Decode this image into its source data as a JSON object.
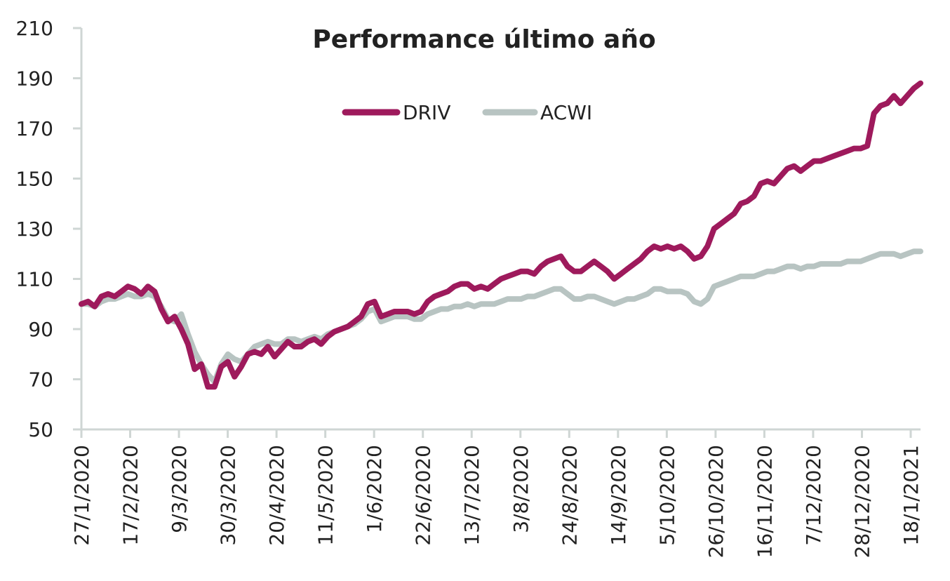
{
  "chart_data": {
    "type": "line",
    "title": "Performance último año",
    "xlabel": "",
    "ylabel": "",
    "ylim": [
      50,
      210
    ],
    "yticks": [
      50,
      70,
      90,
      110,
      130,
      150,
      170,
      190,
      210
    ],
    "grid": false,
    "legend_position": "top-center",
    "x_tick_labels": [
      "27/1/2020",
      "17/2/2020",
      "9/3/2020",
      "30/3/2020",
      "20/4/2020",
      "11/5/2020",
      "1/6/2020",
      "22/6/2020",
      "13/7/2020",
      "3/8/2020",
      "24/8/2020",
      "14/9/2020",
      "5/10/2020",
      "26/10/2020",
      "16/11/2020",
      "7/12/2020",
      "28/12/2020",
      "18/1/2021"
    ],
    "series": [
      {
        "name": "DRIV",
        "color": "#9e1a5c",
        "values": [
          {
            "x": 0,
            "y": 100
          },
          {
            "x": 1,
            "y": 101
          },
          {
            "x": 2,
            "y": 99
          },
          {
            "x": 3,
            "y": 103
          },
          {
            "x": 4,
            "y": 104
          },
          {
            "x": 5,
            "y": 103
          },
          {
            "x": 6,
            "y": 105
          },
          {
            "x": 7,
            "y": 107
          },
          {
            "x": 8,
            "y": 106
          },
          {
            "x": 9,
            "y": 104
          },
          {
            "x": 10,
            "y": 107
          },
          {
            "x": 11,
            "y": 105
          },
          {
            "x": 12,
            "y": 98
          },
          {
            "x": 13,
            "y": 93
          },
          {
            "x": 14,
            "y": 95
          },
          {
            "x": 15,
            "y": 90
          },
          {
            "x": 16,
            "y": 84
          },
          {
            "x": 17,
            "y": 74
          },
          {
            "x": 18,
            "y": 76
          },
          {
            "x": 19,
            "y": 67
          },
          {
            "x": 20,
            "y": 67
          },
          {
            "x": 21,
            "y": 75
          },
          {
            "x": 22,
            "y": 77
          },
          {
            "x": 23,
            "y": 71
          },
          {
            "x": 24,
            "y": 75
          },
          {
            "x": 25,
            "y": 80
          },
          {
            "x": 26,
            "y": 81
          },
          {
            "x": 27,
            "y": 80
          },
          {
            "x": 28,
            "y": 83
          },
          {
            "x": 29,
            "y": 79
          },
          {
            "x": 30,
            "y": 82
          },
          {
            "x": 31,
            "y": 85
          },
          {
            "x": 32,
            "y": 83
          },
          {
            "x": 33,
            "y": 83
          },
          {
            "x": 34,
            "y": 85
          },
          {
            "x": 35,
            "y": 86
          },
          {
            "x": 36,
            "y": 84
          },
          {
            "x": 37,
            "y": 87
          },
          {
            "x": 38,
            "y": 89
          },
          {
            "x": 39,
            "y": 90
          },
          {
            "x": 40,
            "y": 91
          },
          {
            "x": 41,
            "y": 93
          },
          {
            "x": 42,
            "y": 95
          },
          {
            "x": 43,
            "y": 100
          },
          {
            "x": 44,
            "y": 101
          },
          {
            "x": 45,
            "y": 95
          },
          {
            "x": 46,
            "y": 96
          },
          {
            "x": 47,
            "y": 97
          },
          {
            "x": 48,
            "y": 97
          },
          {
            "x": 49,
            "y": 97
          },
          {
            "x": 50,
            "y": 96
          },
          {
            "x": 51,
            "y": 97
          },
          {
            "x": 52,
            "y": 101
          },
          {
            "x": 53,
            "y": 103
          },
          {
            "x": 54,
            "y": 104
          },
          {
            "x": 55,
            "y": 105
          },
          {
            "x": 56,
            "y": 107
          },
          {
            "x": 57,
            "y": 108
          },
          {
            "x": 58,
            "y": 108
          },
          {
            "x": 59,
            "y": 106
          },
          {
            "x": 60,
            "y": 107
          },
          {
            "x": 61,
            "y": 106
          },
          {
            "x": 62,
            "y": 108
          },
          {
            "x": 63,
            "y": 110
          },
          {
            "x": 64,
            "y": 111
          },
          {
            "x": 65,
            "y": 112
          },
          {
            "x": 66,
            "y": 113
          },
          {
            "x": 67,
            "y": 113
          },
          {
            "x": 68,
            "y": 112
          },
          {
            "x": 69,
            "y": 115
          },
          {
            "x": 70,
            "y": 117
          },
          {
            "x": 71,
            "y": 118
          },
          {
            "x": 72,
            "y": 119
          },
          {
            "x": 73,
            "y": 115
          },
          {
            "x": 74,
            "y": 113
          },
          {
            "x": 75,
            "y": 113
          },
          {
            "x": 76,
            "y": 115
          },
          {
            "x": 77,
            "y": 117
          },
          {
            "x": 78,
            "y": 115
          },
          {
            "x": 79,
            "y": 113
          },
          {
            "x": 80,
            "y": 110
          },
          {
            "x": 81,
            "y": 112
          },
          {
            "x": 82,
            "y": 114
          },
          {
            "x": 83,
            "y": 116
          },
          {
            "x": 84,
            "y": 118
          },
          {
            "x": 85,
            "y": 121
          },
          {
            "x": 86,
            "y": 123
          },
          {
            "x": 87,
            "y": 122
          },
          {
            "x": 88,
            "y": 123
          },
          {
            "x": 89,
            "y": 122
          },
          {
            "x": 90,
            "y": 123
          },
          {
            "x": 91,
            "y": 121
          },
          {
            "x": 92,
            "y": 118
          },
          {
            "x": 93,
            "y": 119
          },
          {
            "x": 94,
            "y": 123
          },
          {
            "x": 95,
            "y": 130
          },
          {
            "x": 96,
            "y": 132
          },
          {
            "x": 97,
            "y": 134
          },
          {
            "x": 98,
            "y": 136
          },
          {
            "x": 99,
            "y": 140
          },
          {
            "x": 100,
            "y": 141
          },
          {
            "x": 101,
            "y": 143
          },
          {
            "x": 102,
            "y": 148
          },
          {
            "x": 103,
            "y": 149
          },
          {
            "x": 104,
            "y": 148
          },
          {
            "x": 105,
            "y": 151
          },
          {
            "x": 106,
            "y": 154
          },
          {
            "x": 107,
            "y": 155
          },
          {
            "x": 108,
            "y": 153
          },
          {
            "x": 109,
            "y": 155
          },
          {
            "x": 110,
            "y": 157
          },
          {
            "x": 111,
            "y": 157
          },
          {
            "x": 112,
            "y": 158
          },
          {
            "x": 113,
            "y": 159
          },
          {
            "x": 114,
            "y": 160
          },
          {
            "x": 115,
            "y": 161
          },
          {
            "x": 116,
            "y": 162
          },
          {
            "x": 117,
            "y": 162
          },
          {
            "x": 118,
            "y": 163
          },
          {
            "x": 119,
            "y": 176
          },
          {
            "x": 120,
            "y": 179
          },
          {
            "x": 121,
            "y": 180
          },
          {
            "x": 122,
            "y": 183
          },
          {
            "x": 123,
            "y": 180
          },
          {
            "x": 124,
            "y": 183
          },
          {
            "x": 125,
            "y": 186
          },
          {
            "x": 126,
            "y": 188
          }
        ]
      },
      {
        "name": "ACWI",
        "color": "#b8c4c2",
        "values": [
          {
            "x": 0,
            "y": 100
          },
          {
            "x": 1,
            "y": 100
          },
          {
            "x": 2,
            "y": 99
          },
          {
            "x": 3,
            "y": 101
          },
          {
            "x": 4,
            "y": 102
          },
          {
            "x": 5,
            "y": 102
          },
          {
            "x": 6,
            "y": 103
          },
          {
            "x": 7,
            "y": 104
          },
          {
            "x": 8,
            "y": 103
          },
          {
            "x": 9,
            "y": 103
          },
          {
            "x": 10,
            "y": 104
          },
          {
            "x": 11,
            "y": 103
          },
          {
            "x": 12,
            "y": 99
          },
          {
            "x": 13,
            "y": 94
          },
          {
            "x": 14,
            "y": 93
          },
          {
            "x": 15,
            "y": 96
          },
          {
            "x": 16,
            "y": 88
          },
          {
            "x": 17,
            "y": 81
          },
          {
            "x": 18,
            "y": 76
          },
          {
            "x": 19,
            "y": 72
          },
          {
            "x": 20,
            "y": 69
          },
          {
            "x": 21,
            "y": 76
          },
          {
            "x": 22,
            "y": 80
          },
          {
            "x": 23,
            "y": 78
          },
          {
            "x": 24,
            "y": 77
          },
          {
            "x": 25,
            "y": 80
          },
          {
            "x": 26,
            "y": 83
          },
          {
            "x": 27,
            "y": 84
          },
          {
            "x": 28,
            "y": 85
          },
          {
            "x": 29,
            "y": 84
          },
          {
            "x": 30,
            "y": 84
          },
          {
            "x": 31,
            "y": 86
          },
          {
            "x": 32,
            "y": 86
          },
          {
            "x": 33,
            "y": 85
          },
          {
            "x": 34,
            "y": 86
          },
          {
            "x": 35,
            "y": 87
          },
          {
            "x": 36,
            "y": 86
          },
          {
            "x": 37,
            "y": 88
          },
          {
            "x": 38,
            "y": 89
          },
          {
            "x": 39,
            "y": 90
          },
          {
            "x": 40,
            "y": 91
          },
          {
            "x": 41,
            "y": 92
          },
          {
            "x": 42,
            "y": 94
          },
          {
            "x": 43,
            "y": 97
          },
          {
            "x": 44,
            "y": 98
          },
          {
            "x": 45,
            "y": 93
          },
          {
            "x": 46,
            "y": 94
          },
          {
            "x": 47,
            "y": 95
          },
          {
            "x": 48,
            "y": 95
          },
          {
            "x": 49,
            "y": 95
          },
          {
            "x": 50,
            "y": 94
          },
          {
            "x": 51,
            "y": 94
          },
          {
            "x": 52,
            "y": 96
          },
          {
            "x": 53,
            "y": 97
          },
          {
            "x": 54,
            "y": 98
          },
          {
            "x": 55,
            "y": 98
          },
          {
            "x": 56,
            "y": 99
          },
          {
            "x": 57,
            "y": 99
          },
          {
            "x": 58,
            "y": 100
          },
          {
            "x": 59,
            "y": 99
          },
          {
            "x": 60,
            "y": 100
          },
          {
            "x": 61,
            "y": 100
          },
          {
            "x": 62,
            "y": 100
          },
          {
            "x": 63,
            "y": 101
          },
          {
            "x": 64,
            "y": 102
          },
          {
            "x": 65,
            "y": 102
          },
          {
            "x": 66,
            "y": 102
          },
          {
            "x": 67,
            "y": 103
          },
          {
            "x": 68,
            "y": 103
          },
          {
            "x": 69,
            "y": 104
          },
          {
            "x": 70,
            "y": 105
          },
          {
            "x": 71,
            "y": 106
          },
          {
            "x": 72,
            "y": 106
          },
          {
            "x": 73,
            "y": 104
          },
          {
            "x": 74,
            "y": 102
          },
          {
            "x": 75,
            "y": 102
          },
          {
            "x": 76,
            "y": 103
          },
          {
            "x": 77,
            "y": 103
          },
          {
            "x": 78,
            "y": 102
          },
          {
            "x": 79,
            "y": 101
          },
          {
            "x": 80,
            "y": 100
          },
          {
            "x": 81,
            "y": 101
          },
          {
            "x": 82,
            "y": 102
          },
          {
            "x": 83,
            "y": 102
          },
          {
            "x": 84,
            "y": 103
          },
          {
            "x": 85,
            "y": 104
          },
          {
            "x": 86,
            "y": 106
          },
          {
            "x": 87,
            "y": 106
          },
          {
            "x": 88,
            "y": 105
          },
          {
            "x": 89,
            "y": 105
          },
          {
            "x": 90,
            "y": 105
          },
          {
            "x": 91,
            "y": 104
          },
          {
            "x": 92,
            "y": 101
          },
          {
            "x": 93,
            "y": 100
          },
          {
            "x": 94,
            "y": 102
          },
          {
            "x": 95,
            "y": 107
          },
          {
            "x": 96,
            "y": 108
          },
          {
            "x": 97,
            "y": 109
          },
          {
            "x": 98,
            "y": 110
          },
          {
            "x": 99,
            "y": 111
          },
          {
            "x": 100,
            "y": 111
          },
          {
            "x": 101,
            "y": 111
          },
          {
            "x": 102,
            "y": 112
          },
          {
            "x": 103,
            "y": 113
          },
          {
            "x": 104,
            "y": 113
          },
          {
            "x": 105,
            "y": 114
          },
          {
            "x": 106,
            "y": 115
          },
          {
            "x": 107,
            "y": 115
          },
          {
            "x": 108,
            "y": 114
          },
          {
            "x": 109,
            "y": 115
          },
          {
            "x": 110,
            "y": 115
          },
          {
            "x": 111,
            "y": 116
          },
          {
            "x": 112,
            "y": 116
          },
          {
            "x": 113,
            "y": 116
          },
          {
            "x": 114,
            "y": 116
          },
          {
            "x": 115,
            "y": 117
          },
          {
            "x": 116,
            "y": 117
          },
          {
            "x": 117,
            "y": 117
          },
          {
            "x": 118,
            "y": 118
          },
          {
            "x": 119,
            "y": 119
          },
          {
            "x": 120,
            "y": 120
          },
          {
            "x": 121,
            "y": 120
          },
          {
            "x": 122,
            "y": 120
          },
          {
            "x": 123,
            "y": 119
          },
          {
            "x": 124,
            "y": 120
          },
          {
            "x": 125,
            "y": 121
          },
          {
            "x": 126,
            "y": 121
          }
        ]
      }
    ]
  }
}
